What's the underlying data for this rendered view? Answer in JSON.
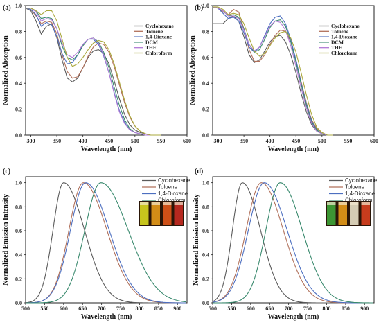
{
  "colors": {
    "cyclohexane": "#5a5a5a",
    "toluene": "#b0705a",
    "dioxane": "#4d6fc0",
    "dcm": "#3a8a6e",
    "thf": "#b07ad6",
    "chloroform": "#aaa83c"
  },
  "chart_data": [
    {
      "panel": "(a)",
      "type": "line",
      "xlabel": "Wavelength (nm)",
      "ylabel": "Normalized Absorption",
      "xlim": [
        290,
        600
      ],
      "ylim": [
        0,
        1.0
      ],
      "xticks": [
        "300",
        "350",
        "400",
        "450",
        "500",
        "550",
        "600"
      ],
      "yticks": [
        "0.0",
        "0.2",
        "0.4",
        "0.6",
        "0.8",
        "1.0"
      ],
      "legend_position": "top-right",
      "legend": [
        "Cyclohexane",
        "Toluene",
        "1,4-Dioxane",
        "DCM",
        "THF",
        "Chloroform"
      ],
      "series": [
        {
          "name": "Cyclohexane",
          "color_key": "cyclohexane",
          "x": [
            290,
            300,
            310,
            320,
            330,
            340,
            350,
            360,
            370,
            380,
            390,
            400,
            410,
            420,
            430,
            440,
            450,
            460,
            470,
            480,
            490,
            500,
            510,
            520,
            530,
            540,
            550
          ],
          "y": [
            0.98,
            0.96,
            0.88,
            0.78,
            0.84,
            0.86,
            0.75,
            0.58,
            0.44,
            0.41,
            0.44,
            0.52,
            0.6,
            0.65,
            0.66,
            0.63,
            0.55,
            0.42,
            0.28,
            0.16,
            0.08,
            0.04,
            0.02,
            0.01,
            0.0,
            0.0,
            0.0
          ]
        },
        {
          "name": "Toluene",
          "color_key": "toluene",
          "x": [
            290,
            300,
            310,
            320,
            330,
            340,
            350,
            360,
            370,
            380,
            390,
            400,
            410,
            420,
            430,
            440,
            450,
            460,
            470,
            480,
            490,
            500,
            510,
            520,
            530,
            540,
            550
          ],
          "y": [
            0.98,
            0.97,
            0.92,
            0.86,
            0.88,
            0.87,
            0.78,
            0.62,
            0.49,
            0.44,
            0.45,
            0.52,
            0.61,
            0.68,
            0.71,
            0.7,
            0.64,
            0.53,
            0.39,
            0.25,
            0.14,
            0.07,
            0.03,
            0.01,
            0.0,
            0.0,
            0.0
          ]
        },
        {
          "name": "1,4-Dioxane",
          "color_key": "dioxane",
          "x": [
            290,
            300,
            310,
            320,
            330,
            340,
            350,
            360,
            370,
            380,
            390,
            400,
            410,
            420,
            430,
            440,
            450,
            460,
            470,
            480,
            490,
            500,
            510,
            520,
            530,
            540,
            550
          ],
          "y": [
            0.98,
            0.97,
            0.93,
            0.84,
            0.87,
            0.85,
            0.76,
            0.63,
            0.55,
            0.56,
            0.62,
            0.7,
            0.74,
            0.74,
            0.7,
            0.61,
            0.48,
            0.33,
            0.19,
            0.1,
            0.04,
            0.02,
            0.01,
            0.0,
            0.0,
            0.0,
            0.0
          ]
        },
        {
          "name": "DCM",
          "color_key": "dcm",
          "x": [
            290,
            300,
            310,
            320,
            330,
            340,
            350,
            360,
            370,
            380,
            390,
            400,
            410,
            420,
            430,
            440,
            450,
            460,
            470,
            480,
            490,
            500,
            510,
            520,
            530,
            540,
            550
          ],
          "y": [
            0.98,
            0.98,
            0.96,
            0.9,
            0.91,
            0.9,
            0.82,
            0.69,
            0.6,
            0.58,
            0.62,
            0.69,
            0.74,
            0.75,
            0.72,
            0.64,
            0.52,
            0.37,
            0.23,
            0.12,
            0.05,
            0.02,
            0.01,
            0.0,
            0.0,
            0.0,
            0.0
          ]
        },
        {
          "name": "THF",
          "color_key": "thf",
          "x": [
            290,
            300,
            310,
            320,
            330,
            340,
            350,
            360,
            370,
            380,
            390,
            400,
            410,
            420,
            430,
            440,
            450,
            460,
            470,
            480,
            490,
            500,
            510,
            520,
            530,
            540,
            550
          ],
          "y": [
            0.98,
            0.98,
            0.95,
            0.88,
            0.9,
            0.89,
            0.82,
            0.71,
            0.62,
            0.6,
            0.64,
            0.7,
            0.74,
            0.75,
            0.71,
            0.62,
            0.48,
            0.32,
            0.18,
            0.09,
            0.04,
            0.02,
            0.01,
            0.0,
            0.0,
            0.0,
            0.0
          ]
        },
        {
          "name": "Chloroform",
          "color_key": "chloroform",
          "x": [
            290,
            300,
            310,
            320,
            330,
            340,
            350,
            360,
            370,
            380,
            390,
            400,
            410,
            420,
            430,
            440,
            450,
            460,
            470,
            480,
            490,
            500,
            510,
            520,
            530,
            540,
            550
          ],
          "y": [
            0.98,
            0.98,
            0.96,
            0.93,
            0.96,
            0.96,
            0.88,
            0.74,
            0.6,
            0.53,
            0.55,
            0.6,
            0.66,
            0.71,
            0.73,
            0.72,
            0.66,
            0.55,
            0.41,
            0.27,
            0.15,
            0.07,
            0.03,
            0.01,
            0.0,
            0.0,
            0.0
          ]
        }
      ]
    },
    {
      "panel": "(b)",
      "type": "line",
      "xlabel": "Wavelength (nm)",
      "ylabel": "Normalized Absorption",
      "xlim": [
        290,
        600
      ],
      "ylim": [
        0,
        1.0
      ],
      "xticks": [
        "300",
        "350",
        "400",
        "450",
        "500",
        "550",
        "600"
      ],
      "yticks": [
        "0.0",
        "0.2",
        "0.4",
        "0.6",
        "0.8",
        "1.0"
      ],
      "legend_position": "top-right",
      "legend": [
        "Cyclohexane",
        "Toluene",
        "1,4-Dioxane",
        "DCM",
        "THF",
        "Chloroform"
      ],
      "series": [
        {
          "name": "Cyclohexane",
          "color_key": "cyclohexane",
          "x": [
            290,
            300,
            310,
            320,
            330,
            340,
            350,
            360,
            370,
            380,
            390,
            400,
            410,
            420,
            430,
            440,
            450,
            460,
            470,
            480,
            490,
            500,
            510,
            520
          ],
          "y": [
            0.86,
            0.86,
            0.86,
            0.9,
            0.92,
            0.88,
            0.76,
            0.62,
            0.56,
            0.58,
            0.65,
            0.72,
            0.76,
            0.77,
            0.72,
            0.62,
            0.48,
            0.32,
            0.18,
            0.08,
            0.03,
            0.01,
            0.0,
            0.0
          ]
        },
        {
          "name": "Toluene",
          "color_key": "toluene",
          "x": [
            290,
            300,
            310,
            320,
            330,
            340,
            350,
            360,
            370,
            380,
            390,
            400,
            410,
            420,
            430,
            440,
            450,
            460,
            470,
            480,
            490,
            500,
            510,
            520
          ],
          "y": [
            0.99,
            0.98,
            0.95,
            0.93,
            0.97,
            0.95,
            0.82,
            0.66,
            0.57,
            0.57,
            0.62,
            0.7,
            0.77,
            0.81,
            0.8,
            0.72,
            0.58,
            0.41,
            0.25,
            0.12,
            0.05,
            0.02,
            0.0,
            0.0
          ]
        },
        {
          "name": "1,4-Dioxane",
          "color_key": "dioxane",
          "x": [
            290,
            300,
            310,
            320,
            330,
            340,
            350,
            360,
            370,
            380,
            390,
            400,
            410,
            420,
            430,
            440,
            450,
            460,
            470,
            480,
            490,
            500,
            510,
            520
          ],
          "y": [
            0.99,
            0.98,
            0.94,
            0.9,
            0.91,
            0.88,
            0.79,
            0.68,
            0.64,
            0.68,
            0.77,
            0.86,
            0.91,
            0.92,
            0.86,
            0.74,
            0.58,
            0.4,
            0.24,
            0.11,
            0.04,
            0.01,
            0.0,
            0.0
          ]
        },
        {
          "name": "DCM",
          "color_key": "dcm",
          "x": [
            290,
            300,
            310,
            320,
            330,
            340,
            350,
            360,
            370,
            380,
            390,
            400,
            410,
            420,
            430,
            440,
            450,
            460,
            470,
            480,
            490,
            500,
            510,
            520
          ],
          "y": [
            0.99,
            0.98,
            0.96,
            0.92,
            0.93,
            0.91,
            0.82,
            0.7,
            0.64,
            0.66,
            0.74,
            0.83,
            0.88,
            0.89,
            0.84,
            0.72,
            0.56,
            0.39,
            0.23,
            0.1,
            0.04,
            0.01,
            0.0,
            0.0
          ]
        },
        {
          "name": "THF",
          "color_key": "thf",
          "x": [
            290,
            300,
            310,
            320,
            330,
            340,
            350,
            360,
            370,
            380,
            390,
            400,
            410,
            420,
            430,
            440,
            450,
            460,
            470,
            480,
            490,
            500,
            510,
            520
          ],
          "y": [
            0.99,
            0.98,
            0.96,
            0.92,
            0.92,
            0.9,
            0.81,
            0.7,
            0.65,
            0.68,
            0.76,
            0.84,
            0.88,
            0.87,
            0.81,
            0.69,
            0.53,
            0.36,
            0.21,
            0.09,
            0.03,
            0.01,
            0.0,
            0.0
          ]
        },
        {
          "name": "Chloroform",
          "color_key": "chloroform",
          "x": [
            290,
            300,
            310,
            320,
            330,
            340,
            350,
            360,
            370,
            380,
            390,
            400,
            410,
            420,
            430,
            440,
            450,
            460,
            470,
            480,
            490,
            500,
            510,
            520
          ],
          "y": [
            0.99,
            0.99,
            0.97,
            0.93,
            0.94,
            0.93,
            0.86,
            0.75,
            0.65,
            0.61,
            0.63,
            0.69,
            0.75,
            0.79,
            0.8,
            0.75,
            0.64,
            0.48,
            0.31,
            0.16,
            0.06,
            0.02,
            0.0,
            0.0
          ]
        }
      ]
    },
    {
      "panel": "(c)",
      "type": "line",
      "xlabel": "Wavelength (nm)",
      "ylabel": "Normalized Emission Intensity",
      "xlim": [
        500,
        925
      ],
      "ylim": [
        0,
        1.05
      ],
      "xticks": [
        "500",
        "550",
        "600",
        "650",
        "700",
        "750",
        "800",
        "850",
        "900"
      ],
      "yticks": [
        "0.0",
        "0.2",
        "0.4",
        "0.6",
        "0.8",
        "1.0"
      ],
      "legend_position": "top-right",
      "legend": [
        "Cyclohexane",
        "Toluene",
        "1,4-Dioxane",
        "Chloroform"
      ],
      "inset_photo": {
        "vials": [
          "#d8d820",
          "#e59a1a",
          "#e0561a",
          "#c42a22"
        ]
      },
      "series": [
        {
          "name": "Cyclohexane",
          "color_key": "cyclohexane",
          "peak": 600,
          "left_width": 28,
          "right_width": 55
        },
        {
          "name": "Toluene",
          "color_key": "toluene",
          "peak": 652,
          "left_width": 38,
          "right_width": 62
        },
        {
          "name": "1,4-Dioxane",
          "color_key": "dioxane",
          "peak": 658,
          "left_width": 40,
          "right_width": 62
        },
        {
          "name": "Chloroform",
          "color_key": "dcm",
          "peak": 698,
          "left_width": 42,
          "right_width": 72
        }
      ]
    },
    {
      "panel": "(d)",
      "type": "line",
      "xlabel": "Wavelength (nm)",
      "ylabel": "Normalized Emission Intensity",
      "xlim": [
        500,
        925
      ],
      "ylim": [
        0,
        1.05
      ],
      "xticks": [
        "500",
        "550",
        "600",
        "650",
        "700",
        "750",
        "800",
        "850",
        "900"
      ],
      "yticks": [
        "0.0",
        "0.2",
        "0.4",
        "0.6",
        "0.8",
        "1.0"
      ],
      "legend_position": "top-right",
      "legend": [
        "Cyclohexane",
        "Toluene",
        "1,4-Dioxane",
        "Chloroform"
      ],
      "inset_photo": {
        "vials": [
          "#3ea43a",
          "#e59a1a",
          "#e8e0c8",
          "#d84020"
        ]
      },
      "series": [
        {
          "name": "Cyclohexane",
          "color_key": "cyclohexane",
          "peak": 578,
          "left_width": 26,
          "right_width": 48
        },
        {
          "name": "Toluene",
          "color_key": "toluene",
          "peak": 628,
          "left_width": 40,
          "right_width": 58
        },
        {
          "name": "1,4-Dioxane",
          "color_key": "dioxane",
          "peak": 636,
          "left_width": 42,
          "right_width": 60
        },
        {
          "name": "Chloroform",
          "color_key": "dcm",
          "peak": 678,
          "left_width": 38,
          "right_width": 58
        }
      ]
    }
  ]
}
